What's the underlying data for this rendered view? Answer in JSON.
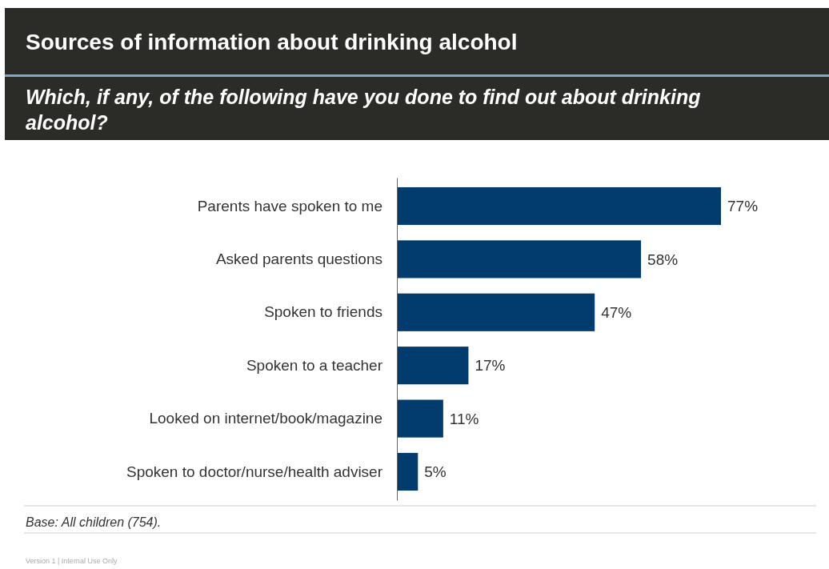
{
  "chart_data": {
    "type": "bar",
    "orientation": "horizontal",
    "title": "Sources of information about drinking alcohol",
    "subtitle": "Which, if any, of the following have you done to find out about drinking alcohol?",
    "categories": [
      "Parents have spoken to me",
      "Asked parents questions",
      "Spoken to friends",
      "Spoken to a teacher",
      "Looked on internet/book/magazine",
      "Spoken to doctor/nurse/health adviser"
    ],
    "values": [
      77,
      58,
      47,
      17,
      11,
      5
    ],
    "value_labels": [
      "77%",
      "58%",
      "47%",
      "17%",
      "11%",
      "5%"
    ],
    "color": "#023c6e",
    "annotations": [
      "Base:  All children (754).",
      "Version 1 | Internal Use Only"
    ]
  }
}
